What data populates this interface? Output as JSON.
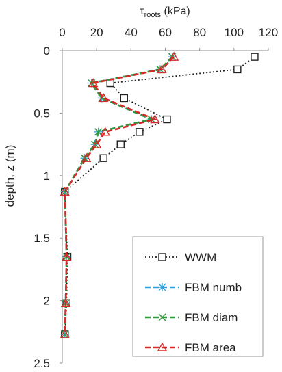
{
  "chart_data": {
    "type": "line",
    "title": "",
    "x_axis": {
      "label_main": "τ",
      "label_sub": "roots",
      "label_unit": " (kPa)",
      "position": "top",
      "min": 0,
      "max": 120,
      "ticks": [
        0,
        20,
        40,
        60,
        80,
        100,
        120
      ],
      "tick_labels": [
        "0",
        "20",
        "40",
        "60",
        "80",
        "100",
        "120"
      ]
    },
    "y_axis": {
      "label": "depth, z (m)",
      "inverted": true,
      "min": 0,
      "max": 2.5,
      "ticks": [
        0,
        0.5,
        1,
        1.5,
        2,
        2.5
      ],
      "tick_labels": [
        "0",
        "0.5",
        "1",
        "1.5",
        "2",
        "2.5"
      ]
    },
    "grid": false,
    "legend_position": "bottom-right",
    "series": [
      {
        "name": "WWM",
        "color": "#222222",
        "line_style": "dotted",
        "marker": "square",
        "points": [
          [
            112,
            0.05
          ],
          [
            102,
            0.15
          ],
          [
            28,
            0.26
          ],
          [
            36,
            0.38
          ],
          [
            61,
            0.55
          ],
          [
            45,
            0.65
          ],
          [
            34,
            0.75
          ],
          [
            24,
            0.86
          ],
          [
            1.5,
            1.13
          ],
          [
            3,
            1.65
          ],
          [
            2.5,
            2.02
          ],
          [
            1.5,
            2.27
          ]
        ]
      },
      {
        "name": "FBM numb",
        "color": "#2aa1db",
        "line_style": "dashed",
        "marker": "asterisk",
        "points": [
          [
            64,
            0.05
          ],
          [
            57,
            0.15
          ],
          [
            17,
            0.26
          ],
          [
            23,
            0.38
          ],
          [
            52,
            0.55
          ],
          [
            21,
            0.65
          ],
          [
            19,
            0.75
          ],
          [
            13,
            0.86
          ],
          [
            1.5,
            1.13
          ],
          [
            2.5,
            1.65
          ],
          [
            2,
            2.02
          ],
          [
            1.5,
            2.27
          ]
        ]
      },
      {
        "name": "FBM diam",
        "color": "#2f9a3c",
        "line_style": "dashed",
        "marker": "cross",
        "points": [
          [
            64,
            0.05
          ],
          [
            57,
            0.15
          ],
          [
            17,
            0.26
          ],
          [
            23,
            0.38
          ],
          [
            52,
            0.55
          ],
          [
            21,
            0.65
          ],
          [
            19,
            0.75
          ],
          [
            13,
            0.86
          ],
          [
            1.5,
            1.13
          ],
          [
            2.5,
            1.65
          ],
          [
            2,
            2.02
          ],
          [
            1.5,
            2.27
          ]
        ]
      },
      {
        "name": "FBM area",
        "color": "#d62a2a",
        "line_style": "dashed",
        "marker": "triangle",
        "points": [
          [
            65,
            0.05
          ],
          [
            58,
            0.15
          ],
          [
            18,
            0.26
          ],
          [
            24,
            0.38
          ],
          [
            54,
            0.55
          ],
          [
            25,
            0.65
          ],
          [
            20,
            0.75
          ],
          [
            14,
            0.86
          ],
          [
            1.5,
            1.13
          ],
          [
            2.5,
            1.65
          ],
          [
            2,
            2.02
          ],
          [
            1.5,
            2.27
          ]
        ]
      }
    ]
  }
}
